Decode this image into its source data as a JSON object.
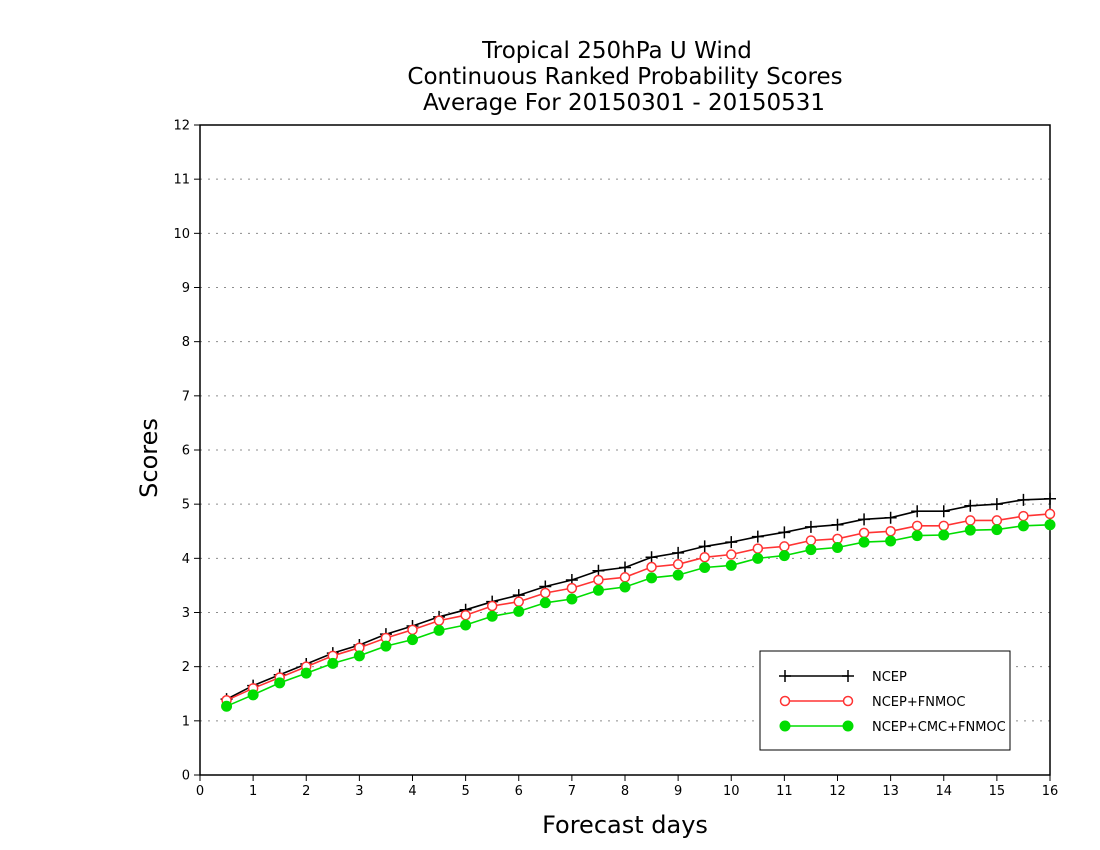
{
  "chart_data": {
    "type": "line",
    "title": [
      "Tropical 250hPa U Wind",
      "Continuous Ranked Probability Scores",
      "Average For 20150301 - 20150531"
    ],
    "xlabel": "Forecast days",
    "ylabel": "Scores",
    "xlim": [
      0,
      16
    ],
    "ylim": [
      0,
      12
    ],
    "xticks": [
      "0",
      "1",
      "2",
      "3",
      "4",
      "5",
      "6",
      "7",
      "8",
      "9",
      "10",
      "11",
      "12",
      "13",
      "14",
      "15",
      "16"
    ],
    "yticks": [
      "0",
      "1",
      "2",
      "3",
      "4",
      "5",
      "6",
      "7",
      "8",
      "9",
      "10",
      "11",
      "12"
    ],
    "grid": "horizontal dotted",
    "legend_position": "bottom-right",
    "x": [
      0.5,
      1,
      1.5,
      2,
      2.5,
      3,
      3.5,
      4,
      4.5,
      5,
      5.5,
      6,
      6.5,
      7,
      7.5,
      8,
      8.5,
      9,
      9.5,
      10,
      10.5,
      11,
      11.5,
      12,
      12.5,
      13,
      13.5,
      14,
      14.5,
      15,
      15.5,
      16
    ],
    "series": [
      {
        "name": "NCEP",
        "color": "#000000",
        "marker": "plus",
        "values": [
          1.4,
          1.65,
          1.85,
          2.05,
          2.25,
          2.4,
          2.6,
          2.75,
          2.92,
          3.05,
          3.2,
          3.32,
          3.48,
          3.6,
          3.77,
          3.83,
          4.02,
          4.1,
          4.22,
          4.3,
          4.4,
          4.48,
          4.58,
          4.62,
          4.72,
          4.75,
          4.87,
          4.87,
          4.97,
          5.0,
          5.08,
          5.1
        ]
      },
      {
        "name": "NCEP+FNMOC",
        "color": "#ff3333",
        "marker": "open-circle",
        "values": [
          1.38,
          1.6,
          1.8,
          2.0,
          2.2,
          2.35,
          2.53,
          2.68,
          2.85,
          2.95,
          3.12,
          3.2,
          3.36,
          3.45,
          3.6,
          3.65,
          3.84,
          3.89,
          4.02,
          4.07,
          4.18,
          4.22,
          4.33,
          4.36,
          4.47,
          4.5,
          4.6,
          4.6,
          4.7,
          4.7,
          4.78,
          4.82
        ]
      },
      {
        "name": "NCEP+CMC+FNMOC",
        "color": "#00dd00",
        "marker": "filled-circle",
        "values": [
          1.27,
          1.48,
          1.7,
          1.88,
          2.06,
          2.2,
          2.38,
          2.5,
          2.67,
          2.77,
          2.93,
          3.02,
          3.18,
          3.25,
          3.41,
          3.47,
          3.64,
          3.69,
          3.83,
          3.87,
          4.0,
          4.05,
          4.16,
          4.2,
          4.3,
          4.32,
          4.42,
          4.43,
          4.52,
          4.53,
          4.6,
          4.62
        ]
      }
    ]
  }
}
